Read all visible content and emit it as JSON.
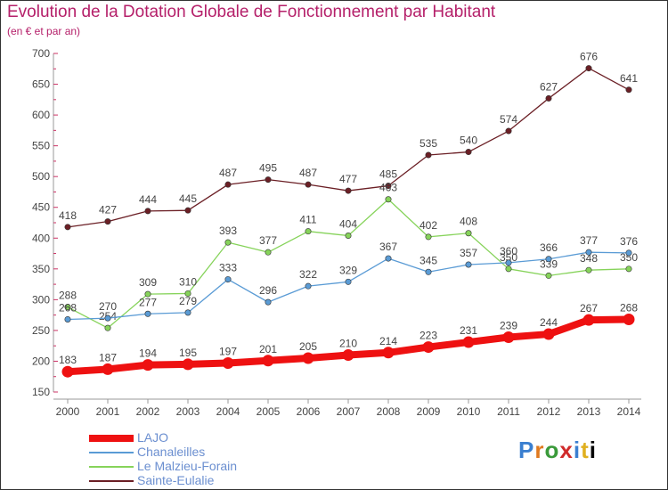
{
  "title": "Evolution de la Dotation Globale de Fonctionnement par Habitant",
  "subtitle": "(en € et par an)",
  "logo": [
    "P",
    "r",
    "o",
    "x",
    "i",
    "t",
    "i"
  ],
  "chart_data": {
    "type": "line",
    "x": [
      "2000",
      "2001",
      "2002",
      "2003",
      "2004",
      "2005",
      "2006",
      "2007",
      "2008",
      "2009",
      "2010",
      "2011",
      "2012",
      "2013",
      "2014"
    ],
    "ylim": [
      150,
      700
    ],
    "yticks": [
      "150",
      "200",
      "250",
      "300",
      "350",
      "400",
      "450",
      "500",
      "550",
      "600",
      "650",
      "700"
    ],
    "grid": false,
    "legend_position": "bottom-left",
    "series": [
      {
        "name": "LAJO",
        "color": "#ee1111",
        "values": [
          183,
          187,
          194,
          195,
          197,
          201,
          205,
          210,
          214,
          223,
          231,
          239,
          244,
          267,
          268
        ]
      },
      {
        "name": "Chanaleilles",
        "color": "#5a9bd5",
        "values": [
          268,
          270,
          277,
          279,
          333,
          296,
          322,
          329,
          367,
          345,
          357,
          360,
          366,
          377,
          376
        ]
      },
      {
        "name": "Le Malzieu-Forain",
        "color": "#86d35a",
        "values": [
          288,
          254,
          309,
          310,
          393,
          377,
          411,
          404,
          463,
          402,
          408,
          350,
          339,
          348,
          350
        ]
      },
      {
        "name": "Sainte-Eulalie",
        "color": "#6b1f25",
        "values": [
          418,
          427,
          444,
          445,
          487,
          495,
          487,
          477,
          485,
          535,
          540,
          574,
          627,
          676,
          641
        ]
      }
    ]
  }
}
